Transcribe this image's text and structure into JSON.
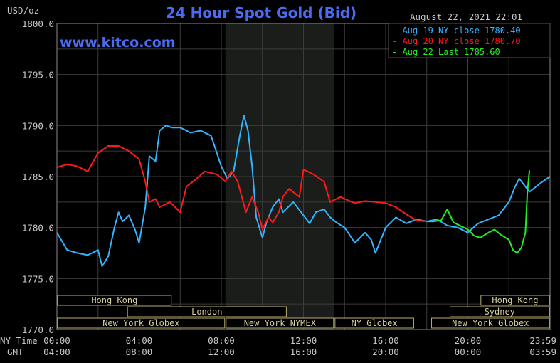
{
  "chart_data": {
    "type": "line",
    "title": "24 Hour Spot Gold (Bid)",
    "ylabel": "USD/oz",
    "watermark": "www.kitco.com",
    "timestamp": "August 22, 2021 22:01",
    "ylim": [
      1770,
      1800
    ],
    "yticks": [
      "1800.0",
      "1795.0",
      "1790.0",
      "1785.0",
      "1780.0",
      "1775.0",
      "1770.0"
    ],
    "ny_time_label": "NY Time",
    "gmt_label": "GMT",
    "ny_time_ticks": [
      "00:00",
      "04:00",
      "08:00",
      "12:00",
      "16:00",
      "20:00",
      "23:59"
    ],
    "gmt_ticks": [
      "04:00",
      "08:00",
      "12:00",
      "16:00",
      "20:00",
      "00:00",
      "03:59"
    ],
    "xlim_hours": [
      0,
      24
    ],
    "shaded_region_hours": [
      8.2,
      13.5
    ],
    "series": [
      {
        "name": "Aug 19 NY close 1780.40",
        "color": "#34b4ff",
        "x": [
          0,
          0.5,
          1,
          1.5,
          2,
          2.2,
          2.5,
          2.8,
          3,
          3.2,
          3.5,
          3.8,
          4,
          4.3,
          4.5,
          4.8,
          5,
          5.3,
          5.6,
          6,
          6.5,
          7,
          7.5,
          8,
          8.3,
          8.6,
          8.9,
          9.1,
          9.3,
          9.5,
          9.7,
          10,
          10.2,
          10.5,
          10.8,
          11,
          11.5,
          12,
          12.3,
          12.6,
          13,
          13.3,
          13.6,
          14,
          14.5,
          15,
          15.3,
          15.5,
          16,
          16.5,
          17,
          17.5,
          18,
          18.5,
          19,
          19.5,
          20,
          20.5,
          21,
          21.5,
          22,
          22.3,
          22.5,
          23,
          23.5,
          24
        ],
        "y": [
          1779.5,
          1777.8,
          1777.5,
          1777.3,
          1777.8,
          1776.2,
          1777.2,
          1780.0,
          1781.5,
          1780.6,
          1781.2,
          1779.8,
          1778.5,
          1782.0,
          1787.0,
          1786.5,
          1789.5,
          1790.0,
          1789.8,
          1789.8,
          1789.3,
          1789.5,
          1789.0,
          1786.0,
          1784.8,
          1785.5,
          1789.0,
          1791.0,
          1789.5,
          1786.0,
          1781.0,
          1779.0,
          1780.5,
          1782.0,
          1782.8,
          1781.5,
          1782.5,
          1781.2,
          1780.4,
          1781.5,
          1781.8,
          1781.0,
          1780.5,
          1780.0,
          1778.5,
          1779.5,
          1778.8,
          1777.5,
          1780.0,
          1781.0,
          1780.4,
          1780.8,
          1780.6,
          1780.8,
          1780.2,
          1780.0,
          1779.5,
          1780.4,
          1780.8,
          1781.2,
          1782.5,
          1784.0,
          1784.8,
          1783.5,
          1784.3,
          1785.0
        ]
      },
      {
        "name": "Aug 20 NY close 1780.70",
        "color": "#ff1a1a",
        "x": [
          0,
          0.5,
          1,
          1.5,
          2,
          2.5,
          3,
          3.5,
          4,
          4.3,
          4.5,
          4.8,
          5,
          5.5,
          6,
          6.3,
          6.8,
          7.2,
          7.8,
          8.2,
          8.5,
          8.8,
          9.2,
          9.5,
          9.8,
          10,
          10.3,
          10.5,
          10.8,
          11,
          11.3,
          11.8,
          12,
          12.5,
          13,
          13.3,
          13.8,
          14,
          14.5,
          15,
          15.5,
          16,
          16.5,
          17,
          17.5,
          18
        ],
        "y": [
          1785.9,
          1786.2,
          1786.0,
          1785.5,
          1787.3,
          1788.0,
          1788.0,
          1787.5,
          1786.7,
          1784.5,
          1782.5,
          1782.8,
          1782.0,
          1782.5,
          1781.5,
          1784.0,
          1784.8,
          1785.5,
          1785.2,
          1784.5,
          1785.5,
          1784.5,
          1781.5,
          1783.0,
          1781.5,
          1779.8,
          1781.0,
          1780.5,
          1781.5,
          1783.0,
          1783.8,
          1783.0,
          1785.7,
          1785.2,
          1784.5,
          1782.5,
          1783.0,
          1782.8,
          1782.4,
          1782.6,
          1782.5,
          1782.4,
          1782.0,
          1781.3,
          1780.7,
          1780.6
        ]
      },
      {
        "name": "Aug 22 Last 1785.60",
        "color": "#22ee22",
        "x": [
          18,
          18.3,
          18.7,
          19,
          19.3,
          19.6,
          20,
          20.3,
          20.6,
          21,
          21.3,
          21.6,
          22,
          22.2,
          22.4,
          22.6,
          22.8,
          22.9,
          23
        ],
        "y": [
          1780.6,
          1780.6,
          1780.7,
          1781.8,
          1780.5,
          1780.2,
          1779.8,
          1779.2,
          1779.0,
          1779.5,
          1779.8,
          1779.3,
          1778.8,
          1777.8,
          1777.5,
          1778.0,
          1779.5,
          1783.5,
          1785.6
        ]
      }
    ],
    "sessions": [
      {
        "label": "Hong Kong",
        "start": 0,
        "end": 5.6,
        "row": 0
      },
      {
        "label": "Hong Kong",
        "start": 20.6,
        "end": 24,
        "row": 0
      },
      {
        "label": "London",
        "start": 3.4,
        "end": 11.2,
        "row": 1
      },
      {
        "label": "Sydney",
        "start": 19.1,
        "end": 24,
        "row": 1
      },
      {
        "label": "New York Globex",
        "start": 0,
        "end": 8.2,
        "row": 2
      },
      {
        "label": "New York NYMEX",
        "start": 8.2,
        "end": 13.5,
        "row": 2
      },
      {
        "label": "NY Globex",
        "start": 13.5,
        "end": 17.4,
        "row": 2
      },
      {
        "label": "New York Globex",
        "start": 18.2,
        "end": 24,
        "row": 2
      }
    ]
  }
}
